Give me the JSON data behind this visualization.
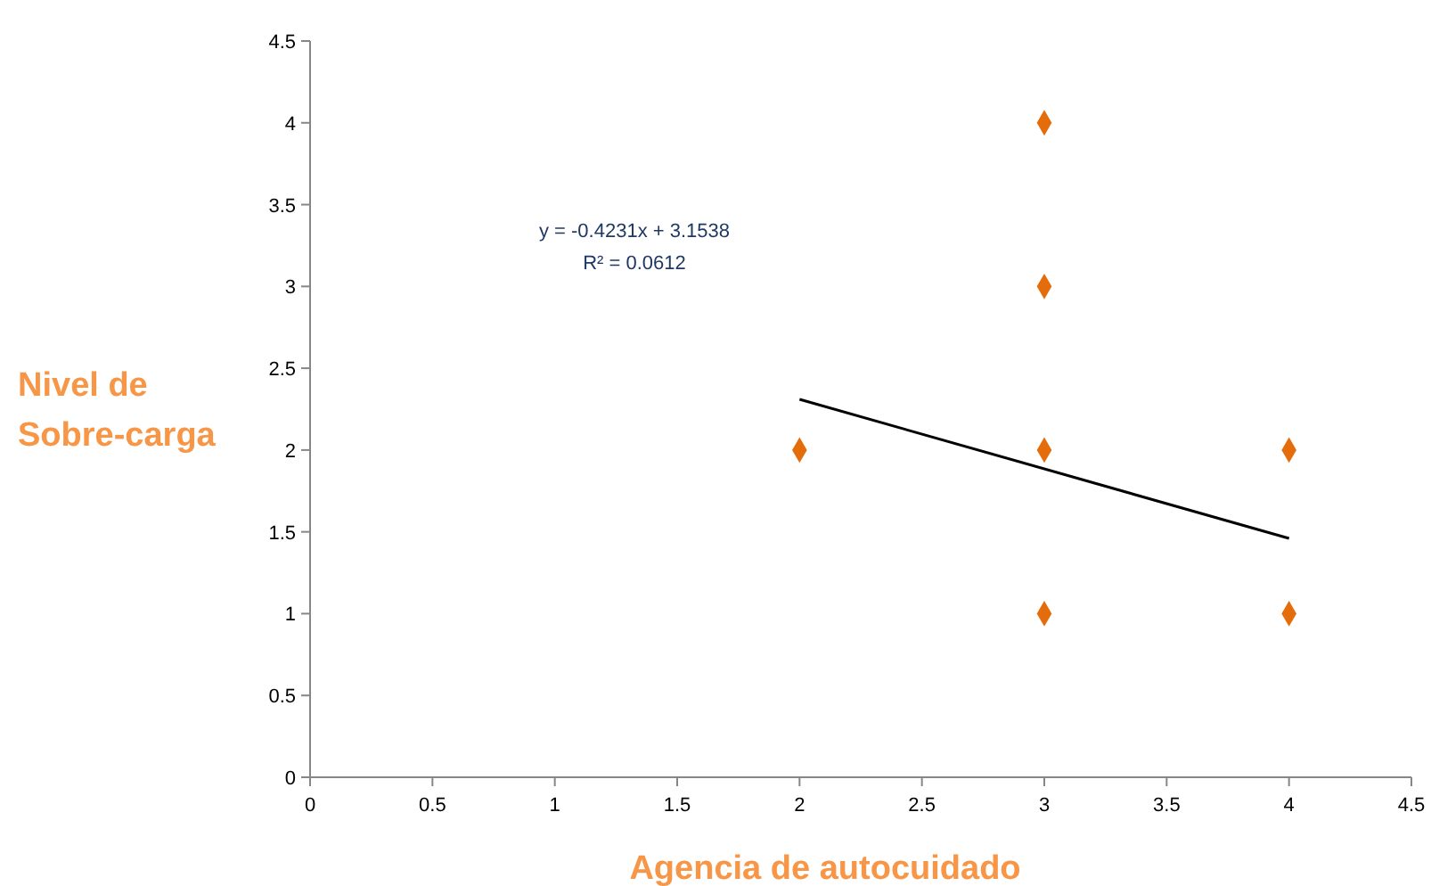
{
  "chart_data": {
    "type": "scatter",
    "xlabel": "Agencia de autocuidado",
    "ylabel": "Nivel de\nSobre-carga",
    "xlim": [
      0,
      4.5
    ],
    "ylim": [
      0,
      4.5
    ],
    "xticks": [
      0,
      0.5,
      1,
      1.5,
      2,
      2.5,
      3,
      3.5,
      4,
      4.5
    ],
    "yticks": [
      0,
      0.5,
      1,
      1.5,
      2,
      2.5,
      3,
      3.5,
      4,
      4.5
    ],
    "grid": false,
    "marker": "diamond",
    "series": [
      {
        "color": "#e46c0a",
        "x": [
          2,
          3,
          3,
          3,
          3,
          4,
          4
        ],
        "values": [
          2,
          4,
          3,
          2,
          1,
          2,
          1
        ]
      },
      {
        "type": "line",
        "color": "#000000",
        "x": [
          2,
          4
        ],
        "values": [
          2.31,
          1.46
        ],
        "line_style": "solid",
        "marker": "none"
      }
    ],
    "annotations": [
      "y = -0.4231x + 3.1538",
      "R² = 0.0612"
    ]
  }
}
